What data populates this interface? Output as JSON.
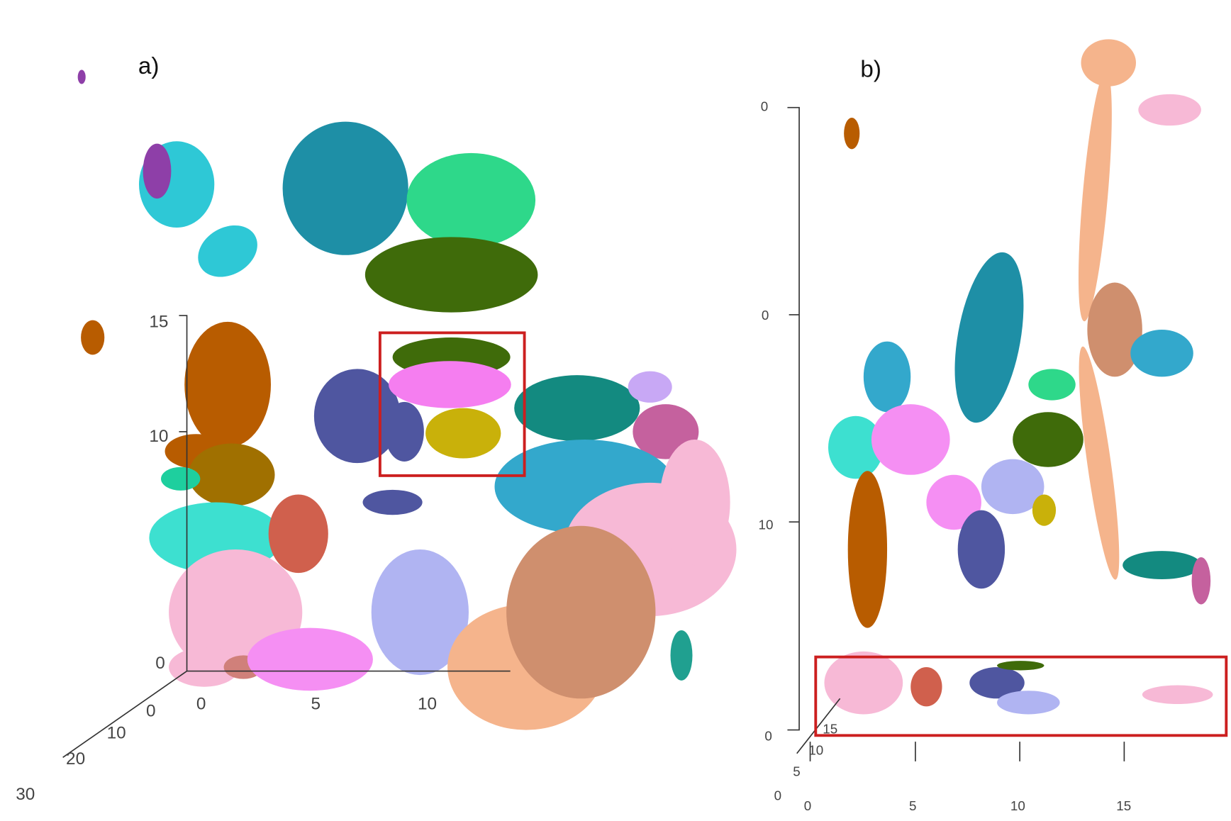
{
  "panels": [
    {
      "label": "a)",
      "vertical_ticks": [
        "15",
        "10",
        "0"
      ],
      "horizontal_ticks": [
        "0",
        "5",
        "10"
      ],
      "depth_ticks": [
        "0",
        "10",
        "20",
        "30"
      ]
    },
    {
      "label": "b)",
      "vertical_ticks": [
        "0",
        "0",
        "10",
        "0"
      ],
      "horizontal_ticks": [
        "0",
        "5",
        "10",
        "15"
      ],
      "depth_ticks": [
        "15",
        "10",
        "5",
        "0"
      ]
    }
  ]
}
